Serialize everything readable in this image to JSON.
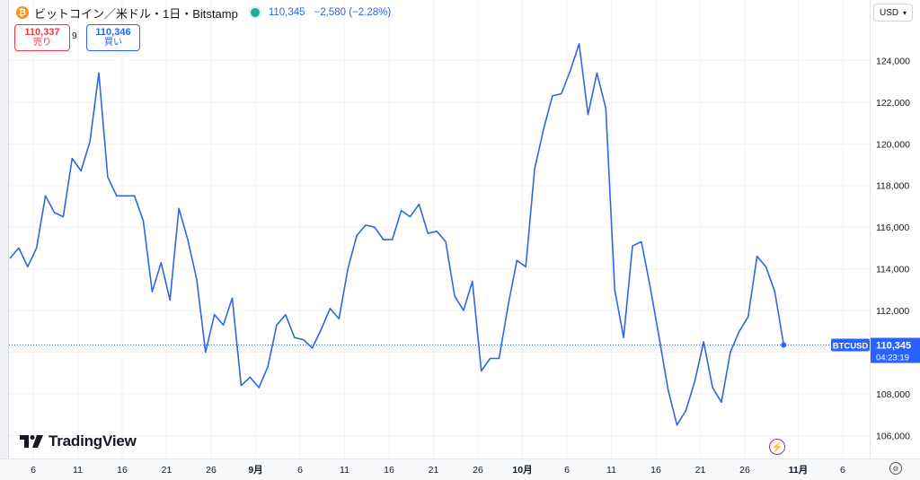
{
  "header": {
    "coin_glyph": "₿",
    "title": "ビットコイン／米ドル・1日・Bitstamp",
    "price": "110,345",
    "change": "−2,580 (−2.28%)"
  },
  "sell": {
    "value": "110,337",
    "label": "売り"
  },
  "spread": "9",
  "buy": {
    "value": "110,346",
    "label": "買い"
  },
  "currency_button": "USD",
  "logo": "TradingView",
  "last_label": {
    "symbol": "BTCUSD",
    "price": "110,345",
    "countdown": "04:23:19"
  },
  "colors": {
    "line": "#2f67e0",
    "last_bg": "#2962ff",
    "dotted": "#2962ff"
  },
  "chart_data": {
    "type": "line",
    "series": [
      {
        "values": [
          114500,
          115000,
          114100,
          115000,
          117500,
          116700,
          116500,
          119300,
          118700,
          120100,
          123400,
          118400,
          117500,
          117500,
          117500,
          116300,
          112900,
          114300,
          112500,
          116900,
          115400,
          113500,
          110000,
          111800,
          111300,
          112600,
          108400,
          108800,
          108300,
          109300,
          111300,
          111800,
          110700,
          110600,
          110200,
          111100,
          112100,
          111600,
          114000,
          115600,
          116100,
          116000,
          115400,
          115400,
          116800,
          116500,
          117100,
          115700,
          115800,
          115300,
          112700,
          112000,
          113400,
          109100,
          109700,
          109700,
          112200,
          114400,
          114100,
          118800,
          120700,
          122300,
          122400,
          123500,
          124800,
          121400,
          123400,
          121700,
          113000,
          110700,
          115100,
          115300,
          113100,
          110700,
          108200,
          106500,
          107200,
          108600,
          110500,
          108300,
          107600,
          110000,
          111000,
          111700,
          114600,
          114100,
          112900,
          110345
        ]
      }
    ],
    "x_ticks": [
      {
        "label": "6",
        "i": 0
      },
      {
        "label": "11",
        "i": 5
      },
      {
        "label": "16",
        "i": 10
      },
      {
        "label": "21",
        "i": 15
      },
      {
        "label": "26",
        "i": 20
      },
      {
        "label": "9月",
        "i": 25,
        "bold": true
      },
      {
        "label": "6",
        "i": 30
      },
      {
        "label": "11",
        "i": 35
      },
      {
        "label": "16",
        "i": 40
      },
      {
        "label": "21",
        "i": 45
      },
      {
        "label": "26",
        "i": 50
      },
      {
        "label": "10月",
        "i": 55,
        "bold": true
      },
      {
        "label": "6",
        "i": 60
      },
      {
        "label": "11",
        "i": 65
      },
      {
        "label": "16",
        "i": 70
      },
      {
        "label": "21",
        "i": 75
      },
      {
        "label": "26",
        "i": 80
      },
      {
        "label": "11月",
        "i": 86,
        "bold": true
      },
      {
        "label": "6",
        "i": 91
      }
    ],
    "y_ticks": [
      "106,000",
      "108,000",
      "110,000",
      "112,000",
      "114,000",
      "116,000",
      "118,000",
      "120,000",
      "122,000",
      "124,000"
    ],
    "y_tick_values": [
      106000,
      108000,
      110000,
      112000,
      114000,
      116000,
      118000,
      120000,
      122000,
      124000
    ],
    "ylim": [
      104900,
      126900
    ],
    "grid": true,
    "last_value": 110345
  }
}
